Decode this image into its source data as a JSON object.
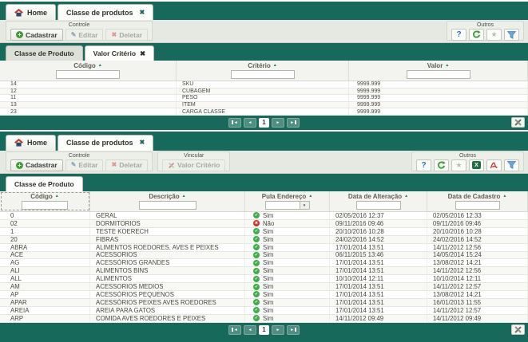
{
  "theme": {
    "green": "#17695c",
    "pager_button": "#4f8e82",
    "ok_green": "#3fae49",
    "error_red": "#d2342a",
    "help_blue": "#2a6fc9",
    "excel_green": "#1e7145",
    "pdf_red": "#c0392b",
    "filter_blue": "#6aa6dd"
  },
  "icons": {
    "close": "✖",
    "caret": "▲",
    "dropdown": "▼",
    "star": "★",
    "help": "?",
    "plus": "+",
    "pencil": "✎",
    "delete": "✖",
    "prev": "◄",
    "next": "►",
    "check": "✔",
    "cross": "✖",
    "excel_letter": "X"
  },
  "top_panel": {
    "tabs": [
      {
        "label": "Home"
      },
      {
        "label": "Classe de produtos"
      }
    ],
    "toolbar": {
      "controle_label": "Controle",
      "buttons": {
        "cadastrar": "Cadastrar",
        "editar": "Editar",
        "deletar": "Deletar"
      },
      "outros_label": "Outros"
    },
    "subtabs": [
      {
        "label": "Classe de Produto"
      },
      {
        "label": "Valor Critério"
      }
    ],
    "table": {
      "columns": [
        "Código",
        "Critério",
        "Valor"
      ],
      "rows": [
        [
          "14",
          "SKU",
          "9999.999"
        ],
        [
          "12",
          "CUBAGEM",
          "9999.999"
        ],
        [
          "11",
          "PESO",
          "9999.999"
        ],
        [
          "13",
          "ITEM",
          "9999.999"
        ],
        [
          "23",
          "CARGA CLASSE",
          "9999.999"
        ]
      ]
    },
    "pagination": {
      "page": "1"
    }
  },
  "bottom_panel": {
    "tabs": [
      {
        "label": "Home"
      },
      {
        "label": "Classe de produtos"
      }
    ],
    "toolbar": {
      "controle_label": "Controle",
      "vincular_label": "Vincular",
      "buttons": {
        "cadastrar": "Cadastrar",
        "editar": "Editar",
        "deletar": "Deletar",
        "valor_criterio": "Valor Critério"
      },
      "outros_label": "Outros"
    },
    "subtabs": [
      {
        "label": "Classe de Produto"
      }
    ],
    "table": {
      "columns": [
        "Código",
        "Descrição",
        "Pula Endereço",
        "Data de Alteração",
        "Data de Cadastro"
      ],
      "rows": [
        {
          "codigo": "0",
          "descricao": "GERAL",
          "pula": "Sim",
          "ok": true,
          "alteracao": "02/05/2016 12:37",
          "cadastro": "02/05/2016 12:33"
        },
        {
          "codigo": "02",
          "descricao": "DORMITORIOS",
          "pula": "Não",
          "ok": false,
          "alteracao": "09/11/2016 09:46",
          "cadastro": "09/11/2016 09:46"
        },
        {
          "codigo": "1",
          "descricao": "TESTE KOERECH",
          "pula": "Sim",
          "ok": true,
          "alteracao": "20/10/2016 10:28",
          "cadastro": "20/10/2016 10:28"
        },
        {
          "codigo": "20",
          "descricao": "FIBRAS",
          "pula": "Sim",
          "ok": true,
          "alteracao": "24/02/2016 14:52",
          "cadastro": "24/02/2016 14:52"
        },
        {
          "codigo": "ABRA",
          "descricao": "ALIMENTOS ROEDORES, AVES E PEIXES",
          "pula": "Sim",
          "ok": true,
          "alteracao": "17/01/2014 13:51",
          "cadastro": "14/11/2012 12:56"
        },
        {
          "codigo": "ACE",
          "descricao": "ACESSÓRIOS",
          "pula": "Sim",
          "ok": true,
          "alteracao": "06/11/2015 13:46",
          "cadastro": "14/05/2014 15:24"
        },
        {
          "codigo": "AG",
          "descricao": "ACESSÓRIOS GRANDES",
          "pula": "Sim",
          "ok": true,
          "alteracao": "17/01/2014 13:51",
          "cadastro": "13/08/2012 14:21"
        },
        {
          "codigo": "ALI",
          "descricao": "ALIMENTOS BINS",
          "pula": "Sim",
          "ok": true,
          "alteracao": "17/01/2014 13:51",
          "cadastro": "14/11/2012 12:56"
        },
        {
          "codigo": "ALL",
          "descricao": "ALIMENTOS",
          "pula": "Sim",
          "ok": true,
          "alteracao": "10/10/2014 12:11",
          "cadastro": "10/10/2014 12:11"
        },
        {
          "codigo": "AM",
          "descricao": "ACESSORIOS MEDIOS",
          "pula": "Sim",
          "ok": true,
          "alteracao": "17/01/2014 13:51",
          "cadastro": "14/11/2012 12:57"
        },
        {
          "codigo": "AP",
          "descricao": "ACESSÓRIOS PEQUENOS",
          "pula": "Sim",
          "ok": true,
          "alteracao": "17/01/2014 13:51",
          "cadastro": "13/08/2012 14:21"
        },
        {
          "codigo": "APAR",
          "descricao": "ACESSÓRIOS PEIXES AVES ROEDORES",
          "pula": "Sim",
          "ok": true,
          "alteracao": "17/01/2014 13:51",
          "cadastro": "16/01/2013 11:55"
        },
        {
          "codigo": "AREIA",
          "descricao": "AREIA PARA GATOS",
          "pula": "Sim",
          "ok": true,
          "alteracao": "17/01/2014 13:51",
          "cadastro": "14/11/2012 12:57"
        },
        {
          "codigo": "ARP",
          "descricao": "COMIDA AVES ROEDORES E PEIXES",
          "pula": "Sim",
          "ok": true,
          "alteracao": "14/11/2012 09:49",
          "cadastro": "14/11/2012 09:49"
        }
      ]
    },
    "pagination": {
      "page": "1"
    }
  }
}
